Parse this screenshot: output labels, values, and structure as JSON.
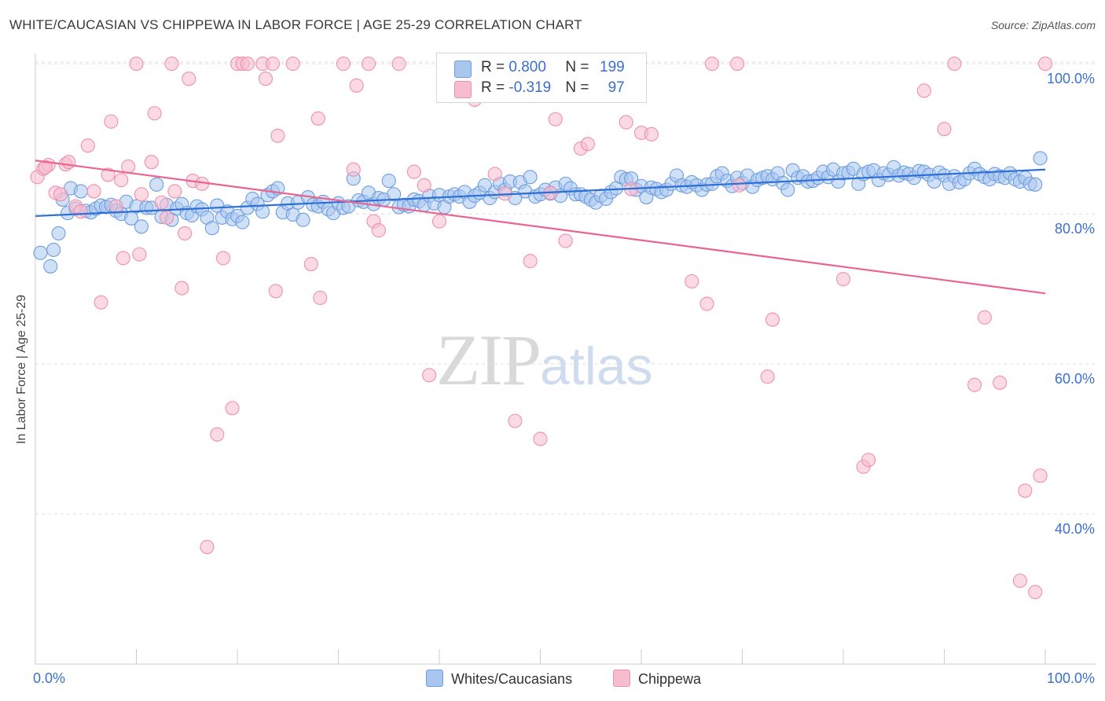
{
  "title": "WHITE/CAUCASIAN VS CHIPPEWA IN LABOR FORCE | AGE 25-29 CORRELATION CHART",
  "source": "Source: ZipAtlas.com",
  "watermark": {
    "zip": "ZIP",
    "atlas": "atlas"
  },
  "legend_top": {
    "rows": [
      {
        "r_label": "R = ",
        "r_value": "0.800",
        "n_label": "N = ",
        "n_value": "199"
      },
      {
        "r_label": "R = ",
        "r_value": "-0.319",
        "n_label": "N = ",
        "n_value": "97"
      }
    ]
  },
  "legend_bottom": {
    "whites": "Whites/Caucasians",
    "chippewa": "Chippewa"
  },
  "colors": {
    "blue_fill": "#a9c6ef",
    "blue_stroke": "#6d9ee0",
    "blue_line": "#2e6fd6",
    "pink_fill": "#f7bccd",
    "pink_stroke": "#ee90ac",
    "pink_line": "#e9658f",
    "grid": "#dcdcdc",
    "tick_text": "#3a6fd0"
  },
  "chart_data": {
    "type": "scatter",
    "title": "WHITE/CAUCASIAN VS CHIPPEWA IN LABOR FORCE | AGE 25-29 CORRELATION CHART",
    "xlabel": "",
    "ylabel": "In Labor Force | Age 25-29",
    "xlim": [
      0,
      100
    ],
    "ylim": [
      20,
      102
    ],
    "x_tick_labels": {
      "left": "0.0%",
      "right": "100.0%"
    },
    "y_ticks": [
      {
        "value": 100,
        "label": "100.0%"
      },
      {
        "value": 80,
        "label": "80.0%"
      },
      {
        "value": 60,
        "label": "60.0%"
      },
      {
        "value": 40,
        "label": "40.0%"
      }
    ],
    "grid": true,
    "series": [
      {
        "name": "Whites/Caucasians",
        "r": 0.8,
        "n": 199,
        "trend": {
          "x": [
            0,
            100
          ],
          "y": [
            79.7,
            85.9
          ]
        },
        "points": [
          [
            0.5,
            74.8
          ],
          [
            1.5,
            73.0
          ],
          [
            1.8,
            75.2
          ],
          [
            2.3,
            77.4
          ],
          [
            2.7,
            81.9
          ],
          [
            3.2,
            80.1
          ],
          [
            3.5,
            83.4
          ],
          [
            4.0,
            80.7
          ],
          [
            4.5,
            83.0
          ],
          [
            5.0,
            80.4
          ],
          [
            5.5,
            80.2
          ],
          [
            6.0,
            80.7
          ],
          [
            6.5,
            81.1
          ],
          [
            7.0,
            80.9
          ],
          [
            7.5,
            81.2
          ],
          [
            8.0,
            80.4
          ],
          [
            8.5,
            80.0
          ],
          [
            9.0,
            81.6
          ],
          [
            9.5,
            79.4
          ],
          [
            10.0,
            81.0
          ],
          [
            10.5,
            78.3
          ],
          [
            11.0,
            80.8
          ],
          [
            11.5,
            80.8
          ],
          [
            12.0,
            83.9
          ],
          [
            12.5,
            79.6
          ],
          [
            13.0,
            81.2
          ],
          [
            13.5,
            79.2
          ],
          [
            14.0,
            80.7
          ],
          [
            14.5,
            81.3
          ],
          [
            15.0,
            80.1
          ],
          [
            15.5,
            79.8
          ],
          [
            16.0,
            81.0
          ],
          [
            16.5,
            80.6
          ],
          [
            17.0,
            79.5
          ],
          [
            17.5,
            78.1
          ],
          [
            18.0,
            81.1
          ],
          [
            18.5,
            79.5
          ],
          [
            19.0,
            80.3
          ],
          [
            19.5,
            79.3
          ],
          [
            20.0,
            79.7
          ],
          [
            20.5,
            78.9
          ],
          [
            21.0,
            80.8
          ],
          [
            21.5,
            82.0
          ],
          [
            22.0,
            81.3
          ],
          [
            22.5,
            80.3
          ],
          [
            23.0,
            82.5
          ],
          [
            23.5,
            83.0
          ],
          [
            24.0,
            83.4
          ],
          [
            24.5,
            80.2
          ],
          [
            25.0,
            81.4
          ],
          [
            25.5,
            79.9
          ],
          [
            26.0,
            81.5
          ],
          [
            26.5,
            79.2
          ],
          [
            27.0,
            82.2
          ],
          [
            27.5,
            81.2
          ],
          [
            28.0,
            81.0
          ],
          [
            28.5,
            81.6
          ],
          [
            29.0,
            80.6
          ],
          [
            29.5,
            80.1
          ],
          [
            30.0,
            81.4
          ],
          [
            30.5,
            80.8
          ],
          [
            31.0,
            81.0
          ],
          [
            31.5,
            84.7
          ],
          [
            32.0,
            81.8
          ],
          [
            32.5,
            81.6
          ],
          [
            33.0,
            82.8
          ],
          [
            33.5,
            81.3
          ],
          [
            34.0,
            82.1
          ],
          [
            34.5,
            81.9
          ],
          [
            35.0,
            84.4
          ],
          [
            35.5,
            82.6
          ],
          [
            36.0,
            80.9
          ],
          [
            36.5,
            81.2
          ],
          [
            37.0,
            81.0
          ],
          [
            37.5,
            81.9
          ],
          [
            38.0,
            81.7
          ],
          [
            38.5,
            81.2
          ],
          [
            39.0,
            82.4
          ],
          [
            39.5,
            81.4
          ],
          [
            40.0,
            82.5
          ],
          [
            40.5,
            80.9
          ],
          [
            41.0,
            82.3
          ],
          [
            41.5,
            82.6
          ],
          [
            42.0,
            82.3
          ],
          [
            42.5,
            82.9
          ],
          [
            43.0,
            81.6
          ],
          [
            43.5,
            82.4
          ],
          [
            44.0,
            82.8
          ],
          [
            44.5,
            83.8
          ],
          [
            45.0,
            82.1
          ],
          [
            45.5,
            82.9
          ],
          [
            46.0,
            84.0
          ],
          [
            46.5,
            83.2
          ],
          [
            47.0,
            84.3
          ],
          [
            47.5,
            82.1
          ],
          [
            48.0,
            84.2
          ],
          [
            48.5,
            83.0
          ],
          [
            49.0,
            84.9
          ],
          [
            49.5,
            82.3
          ],
          [
            50.0,
            82.6
          ],
          [
            50.5,
            83.2
          ],
          [
            51.0,
            82.7
          ],
          [
            51.5,
            83.5
          ],
          [
            52.0,
            82.4
          ],
          [
            52.5,
            84.0
          ],
          [
            53.0,
            83.4
          ],
          [
            53.5,
            82.6
          ],
          [
            54.0,
            82.6
          ],
          [
            54.5,
            82.3
          ],
          [
            55.0,
            81.9
          ],
          [
            55.5,
            81.5
          ],
          [
            56.0,
            82.4
          ],
          [
            56.5,
            82.0
          ],
          [
            57.0,
            82.9
          ],
          [
            57.5,
            83.4
          ],
          [
            58.0,
            84.9
          ],
          [
            58.5,
            84.6
          ],
          [
            59.0,
            84.7
          ],
          [
            59.5,
            83.2
          ],
          [
            60.0,
            83.7
          ],
          [
            60.5,
            82.2
          ],
          [
            61.0,
            83.5
          ],
          [
            61.5,
            83.3
          ],
          [
            62.0,
            82.9
          ],
          [
            62.5,
            83.2
          ],
          [
            63.0,
            84.0
          ],
          [
            63.5,
            85.1
          ],
          [
            64.0,
            83.8
          ],
          [
            64.5,
            83.6
          ],
          [
            65.0,
            84.2
          ],
          [
            65.5,
            83.8
          ],
          [
            66.0,
            83.2
          ],
          [
            66.5,
            83.9
          ],
          [
            67.0,
            84.0
          ],
          [
            67.5,
            85.0
          ],
          [
            68.0,
            85.4
          ],
          [
            68.5,
            84.4
          ],
          [
            69.0,
            83.7
          ],
          [
            69.5,
            84.8
          ],
          [
            70.0,
            84.1
          ],
          [
            70.5,
            85.1
          ],
          [
            71.0,
            83.6
          ],
          [
            71.5,
            84.5
          ],
          [
            72.0,
            84.8
          ],
          [
            72.5,
            85.0
          ],
          [
            73.0,
            84.6
          ],
          [
            73.5,
            85.4
          ],
          [
            74.0,
            84.1
          ],
          [
            74.5,
            83.2
          ],
          [
            75.0,
            85.8
          ],
          [
            75.5,
            84.8
          ],
          [
            76.0,
            85.0
          ],
          [
            76.5,
            84.3
          ],
          [
            77.0,
            84.4
          ],
          [
            77.5,
            84.8
          ],
          [
            78.0,
            85.6
          ],
          [
            78.5,
            84.9
          ],
          [
            79.0,
            85.9
          ],
          [
            79.5,
            84.3
          ],
          [
            80.0,
            85.4
          ],
          [
            80.5,
            85.5
          ],
          [
            81.0,
            86.0
          ],
          [
            81.5,
            84.0
          ],
          [
            82.0,
            85.3
          ],
          [
            82.5,
            85.6
          ],
          [
            83.0,
            85.8
          ],
          [
            83.5,
            84.5
          ],
          [
            84.0,
            85.4
          ],
          [
            84.5,
            85.2
          ],
          [
            85.0,
            86.2
          ],
          [
            85.5,
            85.1
          ],
          [
            86.0,
            85.5
          ],
          [
            86.5,
            85.3
          ],
          [
            87.0,
            84.8
          ],
          [
            87.5,
            85.7
          ],
          [
            88.0,
            85.6
          ],
          [
            88.5,
            85.2
          ],
          [
            89.0,
            84.3
          ],
          [
            89.5,
            85.5
          ],
          [
            90.0,
            85.1
          ],
          [
            90.5,
            84.0
          ],
          [
            91.0,
            85.0
          ],
          [
            91.5,
            84.2
          ],
          [
            92.0,
            84.6
          ],
          [
            92.5,
            85.4
          ],
          [
            93.0,
            86.0
          ],
          [
            93.5,
            85.3
          ],
          [
            94.0,
            84.9
          ],
          [
            94.5,
            84.6
          ],
          [
            95.0,
            85.3
          ],
          [
            95.5,
            85.0
          ],
          [
            96.0,
            84.8
          ],
          [
            96.5,
            85.4
          ],
          [
            97.0,
            84.6
          ],
          [
            97.5,
            84.3
          ],
          [
            98.0,
            84.8
          ],
          [
            98.5,
            84.0
          ],
          [
            99.0,
            83.9
          ],
          [
            99.5,
            87.4
          ]
        ]
      },
      {
        "name": "Chippewa",
        "r": -0.319,
        "n": 97,
        "trend": {
          "x": [
            0,
            100
          ],
          "y": [
            87.1,
            69.4
          ]
        },
        "points": [
          [
            0.2,
            84.9
          ],
          [
            0.8,
            86.0
          ],
          [
            1.3,
            86.5
          ],
          [
            2.0,
            82.8
          ],
          [
            2.5,
            82.6
          ],
          [
            3.0,
            86.6
          ],
          [
            3.3,
            86.9
          ],
          [
            4.0,
            81.0
          ],
          [
            4.5,
            80.3
          ],
          [
            5.2,
            89.1
          ],
          [
            5.8,
            83.0
          ],
          [
            6.5,
            68.2
          ],
          [
            7.2,
            85.2
          ],
          [
            7.5,
            92.3
          ],
          [
            8.0,
            81.0
          ],
          [
            8.5,
            84.5
          ],
          [
            8.7,
            74.1
          ],
          [
            9.2,
            86.3
          ],
          [
            10.0,
            100.0
          ],
          [
            10.3,
            74.6
          ],
          [
            10.5,
            82.6
          ],
          [
            11.5,
            86.9
          ],
          [
            11.8,
            93.4
          ],
          [
            12.5,
            81.5
          ],
          [
            13.0,
            79.5
          ],
          [
            13.5,
            100.0
          ],
          [
            13.8,
            83.0
          ],
          [
            14.5,
            70.1
          ],
          [
            14.8,
            77.4
          ],
          [
            15.2,
            98.0
          ],
          [
            15.6,
            84.4
          ],
          [
            16.5,
            84.0
          ],
          [
            17.0,
            35.6
          ],
          [
            18.0,
            50.6
          ],
          [
            18.6,
            74.1
          ],
          [
            19.5,
            54.1
          ],
          [
            20.0,
            100.0
          ],
          [
            20.5,
            100.0
          ],
          [
            21.0,
            100.0
          ],
          [
            22.5,
            100.0
          ],
          [
            22.8,
            98.0
          ],
          [
            23.5,
            100.0
          ],
          [
            23.8,
            69.7
          ],
          [
            24.0,
            90.4
          ],
          [
            25.5,
            100.0
          ],
          [
            27.3,
            73.3
          ],
          [
            28.0,
            92.7
          ],
          [
            28.2,
            68.8
          ],
          [
            30.5,
            100.0
          ],
          [
            31.5,
            85.9
          ],
          [
            31.8,
            97.1
          ],
          [
            33.0,
            100.0
          ],
          [
            33.5,
            79.0
          ],
          [
            34.0,
            77.8
          ],
          [
            36.0,
            100.0
          ],
          [
            37.5,
            85.6
          ],
          [
            38.5,
            83.8
          ],
          [
            39.0,
            58.5
          ],
          [
            40.0,
            79.0
          ],
          [
            43.5,
            95.2
          ],
          [
            45.5,
            85.3
          ],
          [
            46.5,
            82.7
          ],
          [
            47.5,
            52.4
          ],
          [
            49.0,
            73.7
          ],
          [
            50.0,
            50.0
          ],
          [
            51.0,
            82.8
          ],
          [
            51.5,
            92.6
          ],
          [
            52.5,
            76.4
          ],
          [
            54.0,
            88.7
          ],
          [
            54.7,
            89.3
          ],
          [
            57.5,
            95.7
          ],
          [
            58.5,
            92.2
          ],
          [
            59.0,
            83.3
          ],
          [
            60.0,
            90.8
          ],
          [
            61.0,
            90.6
          ],
          [
            65.0,
            71.0
          ],
          [
            66.5,
            68.0
          ],
          [
            67.0,
            100.0
          ],
          [
            69.5,
            100.0
          ],
          [
            69.7,
            83.8
          ],
          [
            72.5,
            58.3
          ],
          [
            73.0,
            65.9
          ],
          [
            80.0,
            71.3
          ],
          [
            82.0,
            46.3
          ],
          [
            82.5,
            47.2
          ],
          [
            88.0,
            96.4
          ],
          [
            90.0,
            91.3
          ],
          [
            91.0,
            100.0
          ],
          [
            93.0,
            57.2
          ],
          [
            94.0,
            66.2
          ],
          [
            95.5,
            57.5
          ],
          [
            97.5,
            31.1
          ],
          [
            98.0,
            43.1
          ],
          [
            99.0,
            29.6
          ],
          [
            99.5,
            45.1
          ],
          [
            100.0,
            100.0
          ],
          [
            1.0,
            86.2
          ]
        ]
      }
    ]
  }
}
